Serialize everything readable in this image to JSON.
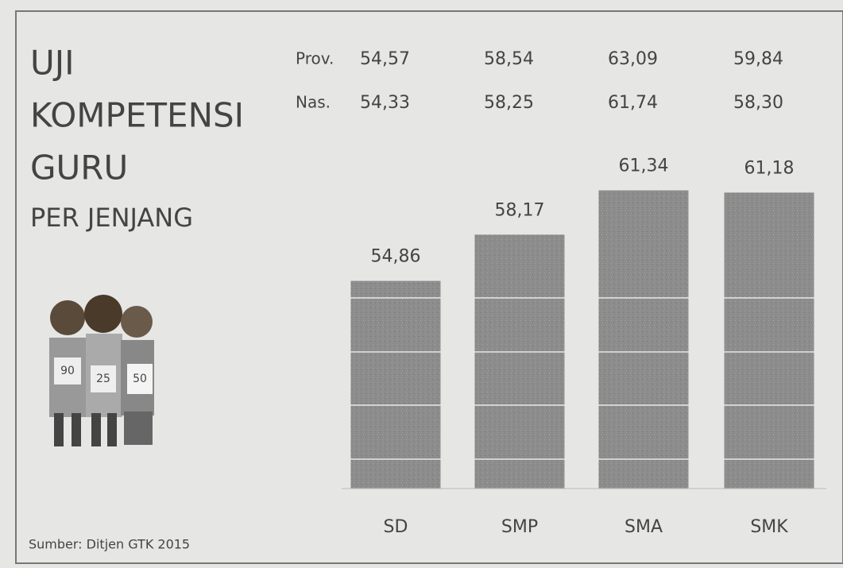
{
  "chart_data": {
    "type": "bar",
    "title_lines": [
      "UJI",
      "KOMPETENSI",
      "GURU"
    ],
    "subtitle": "PER JENJANG",
    "source": "Sumber: Ditjen GTK 2015",
    "illustration_labels": [
      "90",
      "25",
      "50"
    ],
    "categories": [
      "SD",
      "SMP",
      "SMA",
      "SMK"
    ],
    "values": [
      54.86,
      58.17,
      61.34,
      61.18
    ],
    "value_labels": [
      "54,86",
      "58,17",
      "61,34",
      "61,18"
    ],
    "color": "#8c8c8c",
    "ylim": [
      40,
      62
    ],
    "comparison_rows": [
      {
        "name": "Prov.",
        "values": [
          54.57,
          58.54,
          63.09,
          59.84
        ],
        "value_labels": [
          "54,57",
          "58,54",
          "63,09",
          "59,84"
        ]
      },
      {
        "name": "Nas.",
        "values": [
          54.33,
          58.25,
          61.74,
          58.3
        ],
        "value_labels": [
          "54,33",
          "58,25",
          "61,74",
          "58,30"
        ]
      }
    ]
  }
}
